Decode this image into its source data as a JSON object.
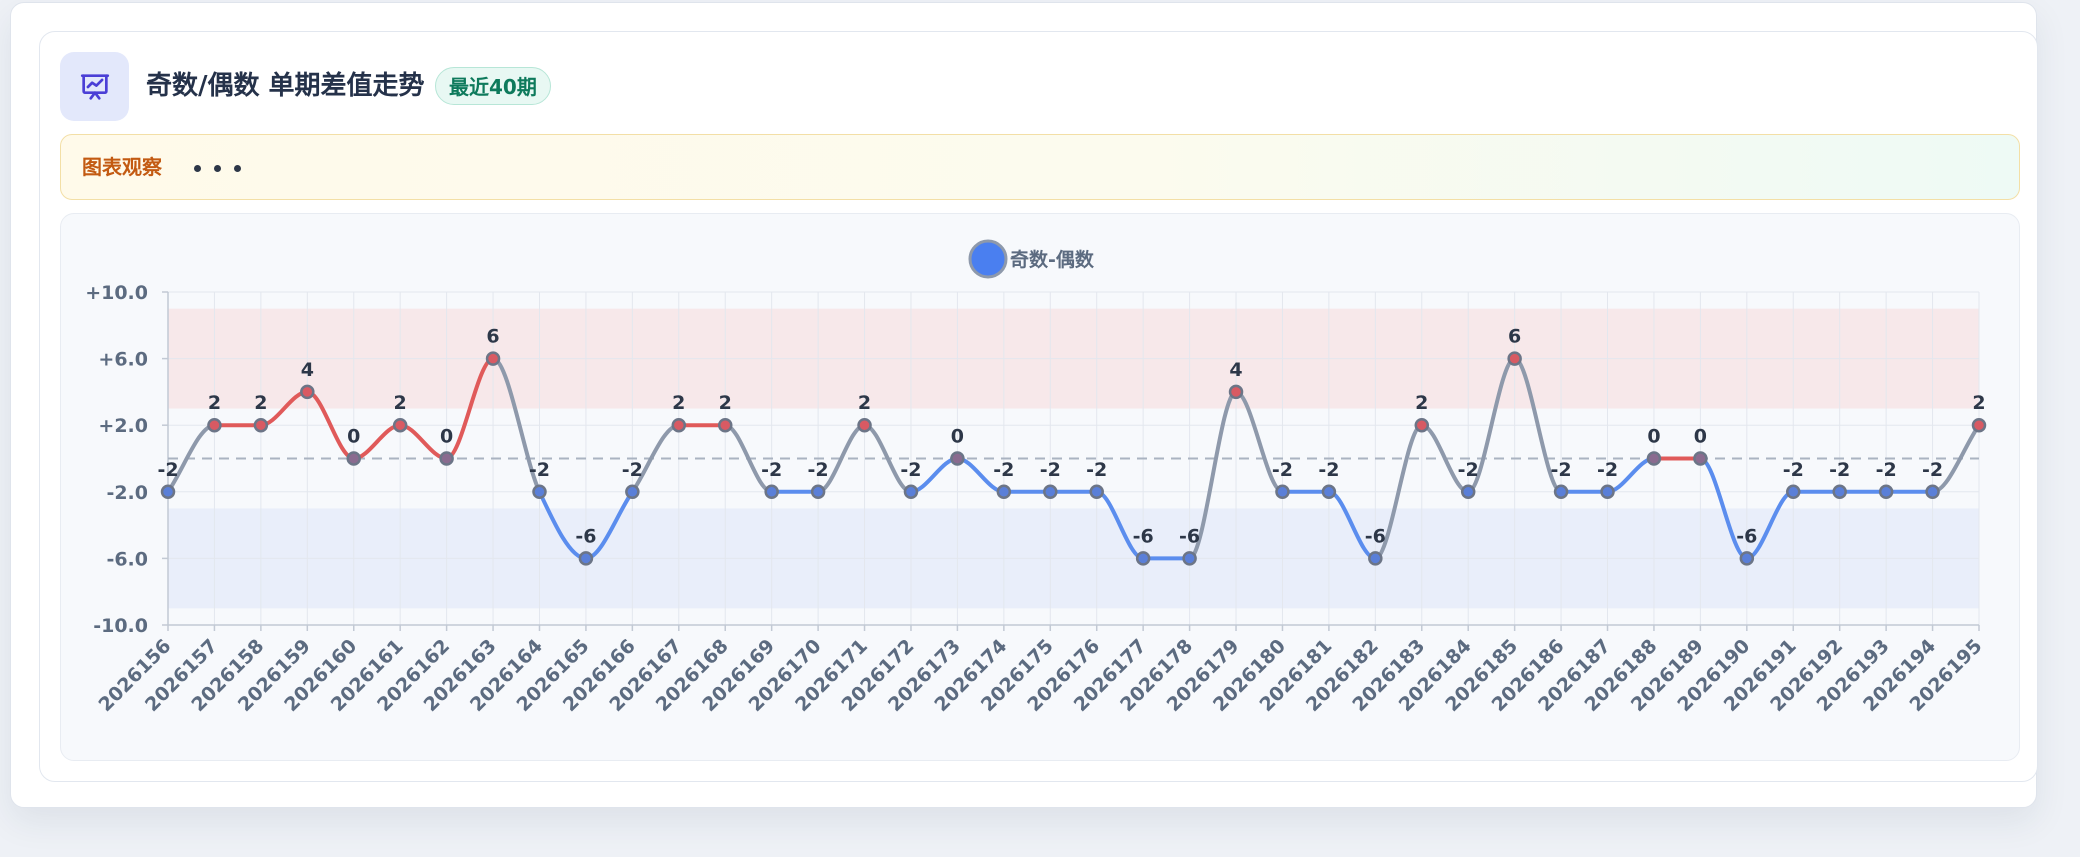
{
  "header": {
    "icon": "presentation-chart-icon",
    "title": "奇数/偶数 单期差值走势",
    "badge": "最近40期"
  },
  "observation": {
    "label": "图表观察",
    "dots": "• • •"
  },
  "colors": {
    "positive": "#e05a5a",
    "negative": "#5b8dee",
    "neutral": "#8e99ab",
    "upper_band": "#f7e8ea",
    "lower_band": "#e9eefa",
    "legend_dot": "#4a7ff0"
  },
  "chart_data": {
    "type": "line",
    "x": [
      "2026156",
      "2026157",
      "2026158",
      "2026159",
      "2026160",
      "2026161",
      "2026162",
      "2026163",
      "2026164",
      "2026165",
      "2026166",
      "2026167",
      "2026168",
      "2026169",
      "2026170",
      "2026171",
      "2026172",
      "2026173",
      "2026174",
      "2026175",
      "2026176",
      "2026177",
      "2026178",
      "2026179",
      "2026180",
      "2026181",
      "2026182",
      "2026183",
      "2026184",
      "2026185",
      "2026186",
      "2026187",
      "2026188",
      "2026189",
      "2026190",
      "2026191",
      "2026192",
      "2026193",
      "2026194",
      "2026195"
    ],
    "series": [
      {
        "name": "奇数-偶数",
        "values": [
          -2,
          2,
          2,
          4,
          0,
          2,
          0,
          6,
          -2,
          -6,
          -2,
          2,
          2,
          -2,
          -2,
          2,
          -2,
          0,
          -2,
          -2,
          -2,
          -6,
          -6,
          4,
          -2,
          -2,
          -6,
          2,
          -2,
          6,
          -2,
          -2,
          0,
          0,
          -6,
          -2,
          -2,
          -2,
          -2,
          2
        ]
      }
    ],
    "ylim": [
      -10,
      10
    ],
    "yticks": [
      "+10.0",
      "+6.0",
      "+2.0",
      "-2.0",
      "-6.0",
      "-10.0"
    ],
    "yticks_values": [
      10,
      6,
      2,
      -2,
      -6,
      -10
    ],
    "reference_line": 0,
    "bands": [
      {
        "from": 3,
        "to": 9
      },
      {
        "from": -9,
        "to": -3
      }
    ],
    "grid": true,
    "legend_position": "top-center",
    "data_labels": true
  }
}
